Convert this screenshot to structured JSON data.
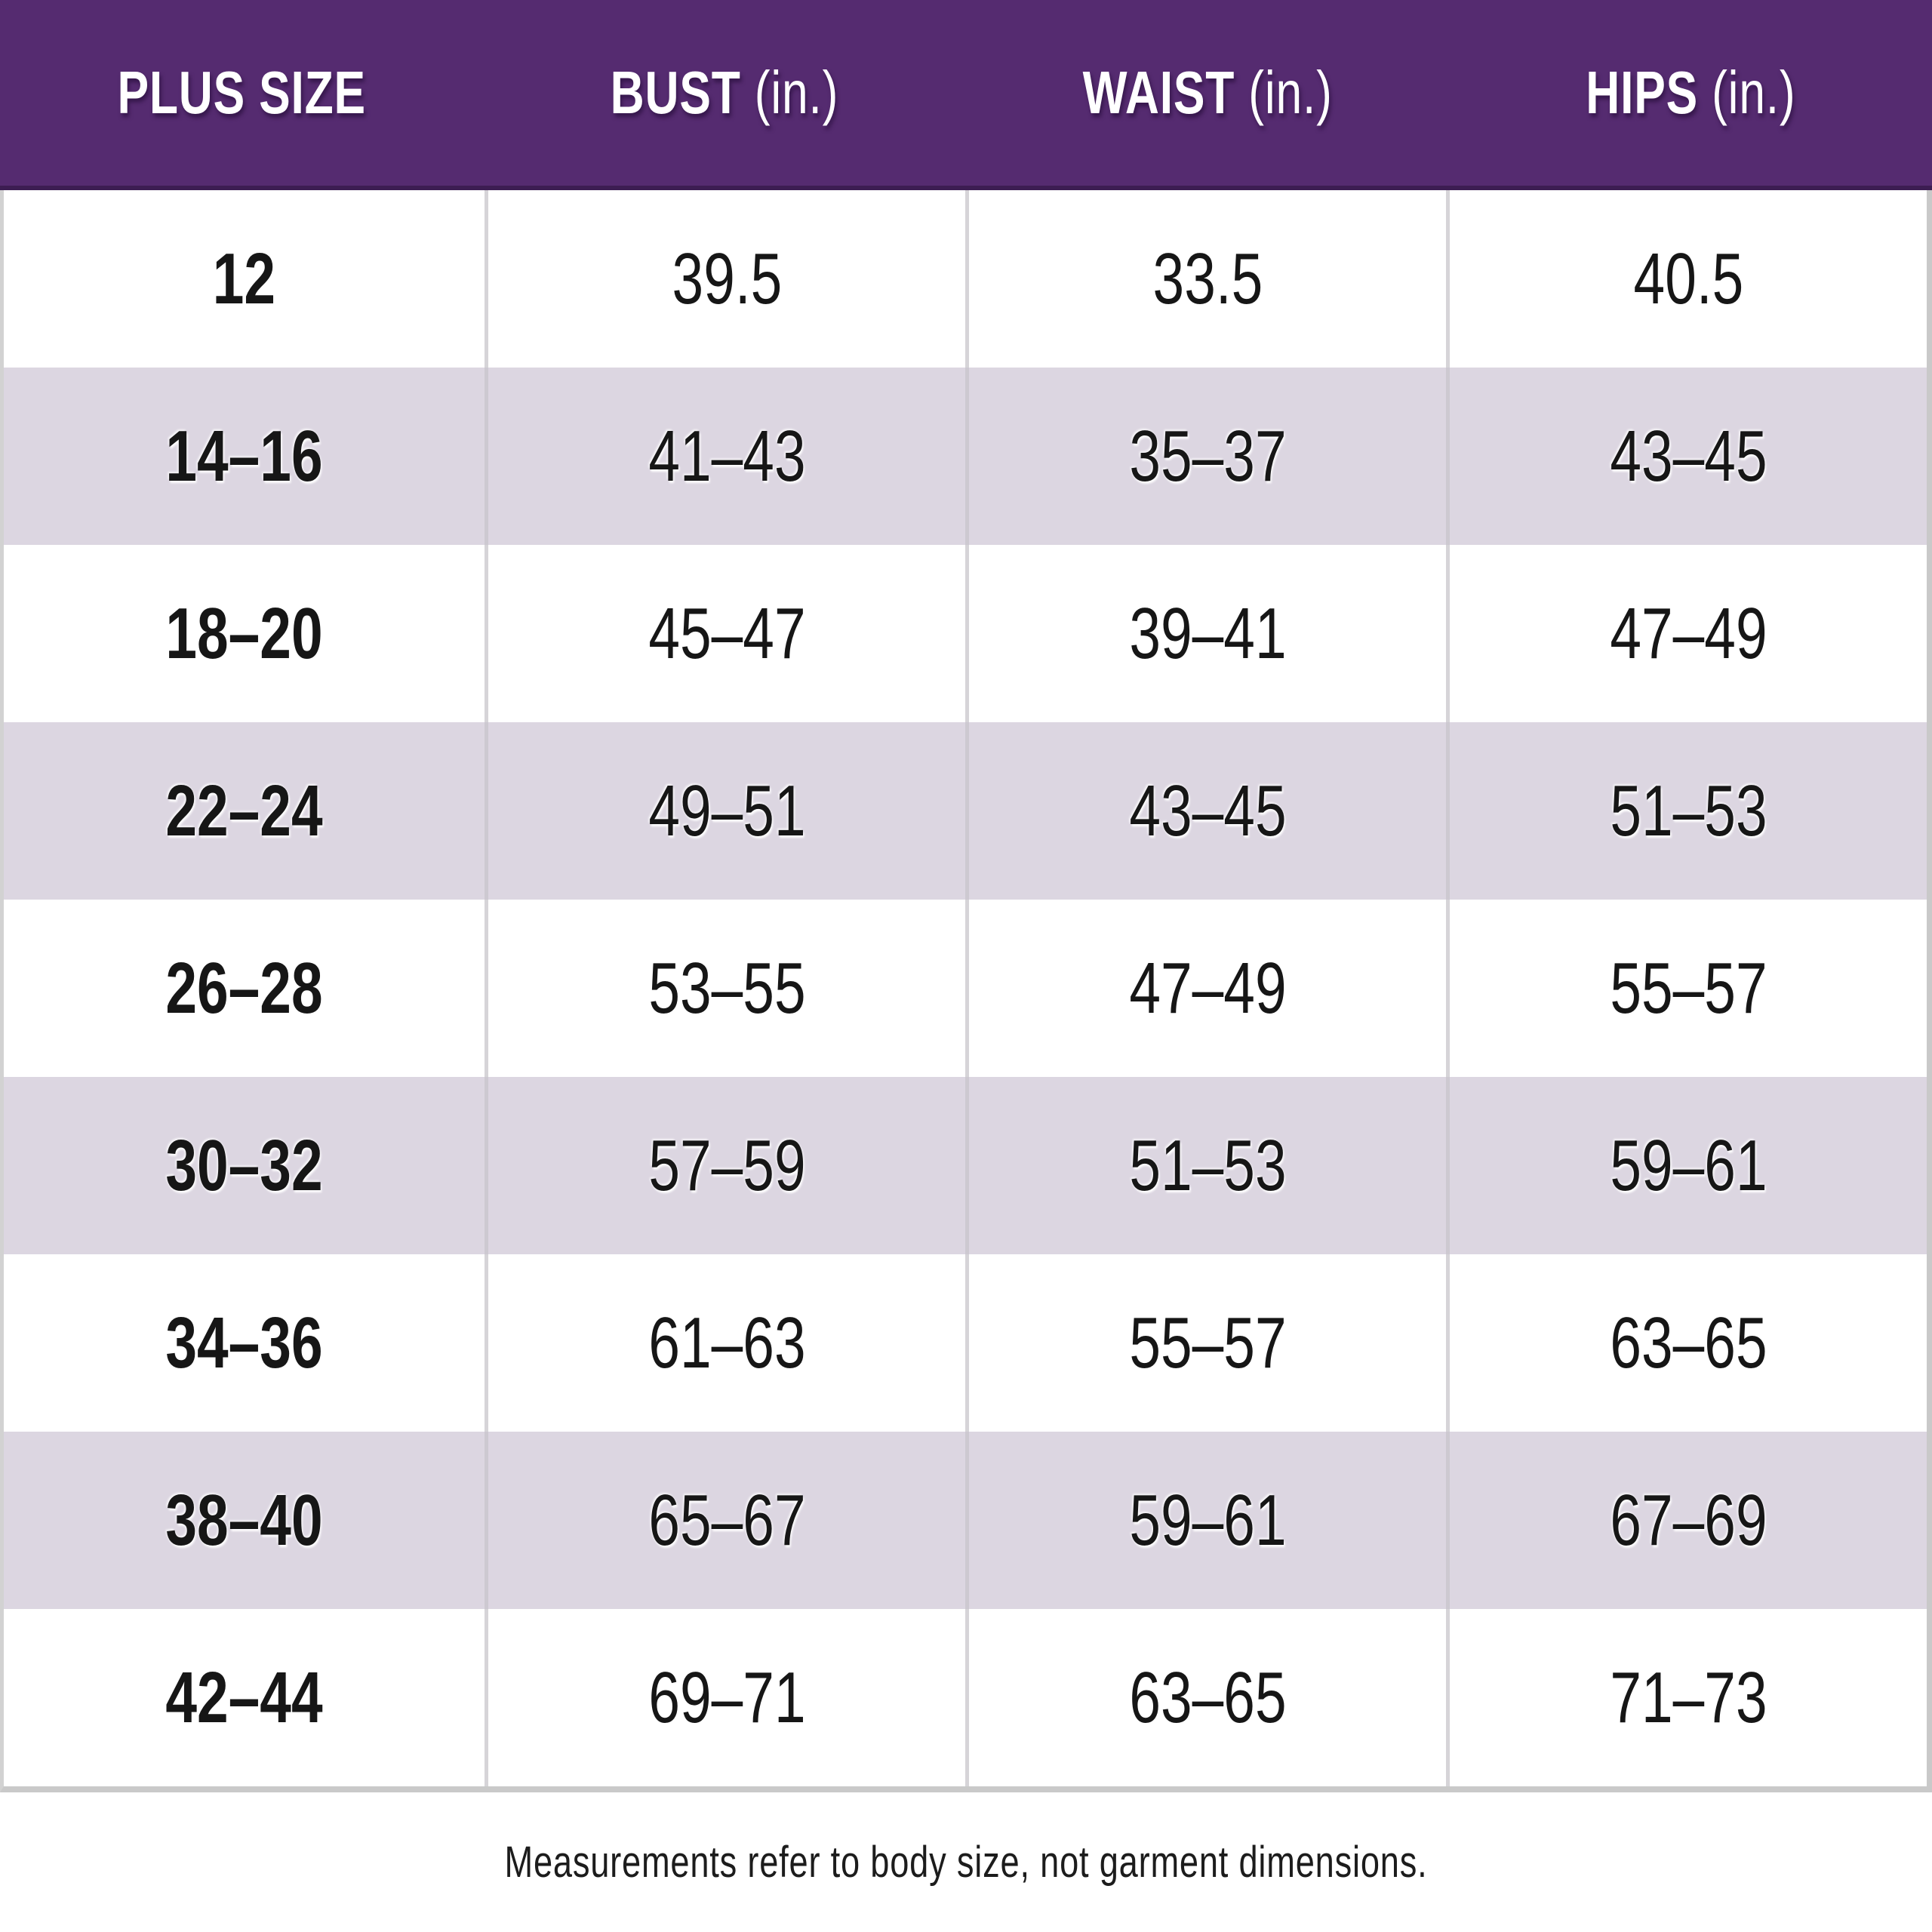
{
  "colors": {
    "header_background": "#552b70",
    "header_border_bottom": "#3c1d52",
    "header_text": "#ffffff",
    "row_alt_background": "#dcd6e1",
    "row_background": "#ffffff",
    "divider": "#cdc9d1",
    "body_text": "#161616"
  },
  "table": {
    "headers": [
      {
        "bold": "PLUS SIZE",
        "suffix": ""
      },
      {
        "bold": "BUST",
        "suffix": "(in.)"
      },
      {
        "bold": "WAIST",
        "suffix": "(in.)"
      },
      {
        "bold": "HIPS",
        "suffix": "(in.)"
      }
    ]
  },
  "footer": {
    "note": "Measurements refer to body size, not garment dimensions."
  },
  "chart_data": {
    "type": "table",
    "columns": [
      "PLUS SIZE",
      "BUST (in.)",
      "WAIST (in.)",
      "HIPS (in.)"
    ],
    "rows": [
      [
        "12",
        "39.5",
        "33.5",
        "40.5"
      ],
      [
        "14–16",
        "41–43",
        "35–37",
        "43–45"
      ],
      [
        "18–20",
        "45–47",
        "39–41",
        "47–49"
      ],
      [
        "22–24",
        "49–51",
        "43–45",
        "51–53"
      ],
      [
        "26–28",
        "53–55",
        "47–49",
        "55–57"
      ],
      [
        "30–32",
        "57–59",
        "51–53",
        "59–61"
      ],
      [
        "34–36",
        "61–63",
        "55–57",
        "63–65"
      ],
      [
        "38–40",
        "65–67",
        "59–61",
        "67–69"
      ],
      [
        "42–44",
        "69–71",
        "63–65",
        "71–73"
      ]
    ],
    "footnote": "Measurements refer to body size, not garment dimensions.",
    "layout": {
      "grid": "4 equal columns",
      "row_striping": "white / lavender alternating",
      "header_style": "purple band, white bold condensed text"
    }
  }
}
